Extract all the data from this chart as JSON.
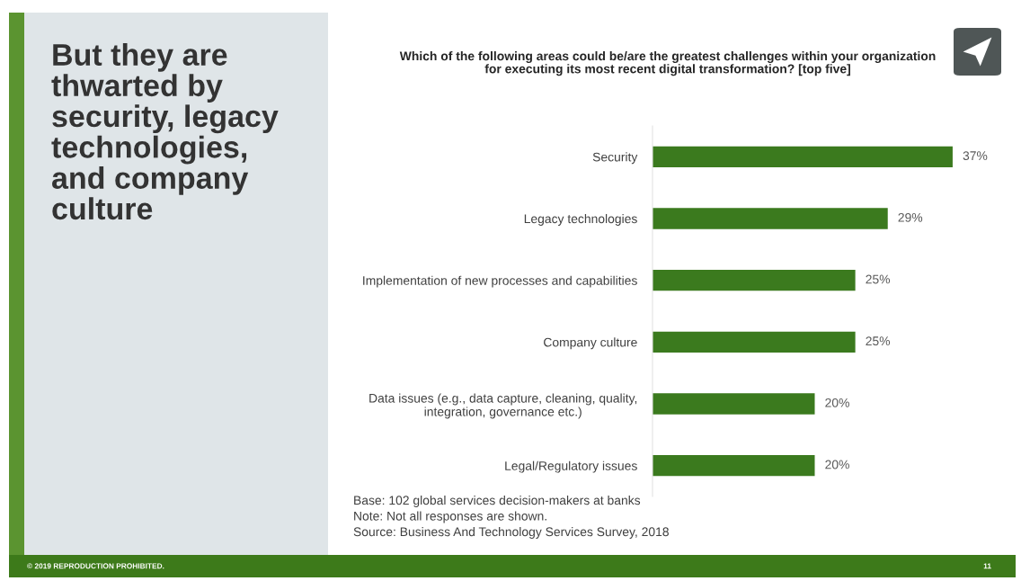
{
  "chart_data": {
    "type": "bar",
    "orientation": "horizontal",
    "title": "But they are thwarted by security, legacy technologies, and company culture",
    "subtitle": "Which of the following areas could be/are the greatest challenges within your organization for executing its most recent digital transformation? [top five]",
    "categories": [
      "Security",
      "Legacy technologies",
      "Implementation of new processes and capabilities",
      "Company culture",
      "Data issues (e.g., data capture, cleaning, quality, integration, governance etc.)",
      "Legal/Regulatory issues"
    ],
    "values": [
      37,
      29,
      25,
      25,
      20,
      20
    ],
    "value_labels": [
      "37%",
      "29%",
      "25%",
      "25%",
      "20%",
      "20%"
    ],
    "color": "#3b7a1e",
    "tick_labels": "y",
    "annotations": [
      "Base: 102 global services decision-makers at banks",
      "Note: Not all responses are shown.",
      "Source: Business And Technology Services Survey, 2018",
      "© 2019 REPRODUCTION PROHIBITED.",
      "11"
    ]
  }
}
